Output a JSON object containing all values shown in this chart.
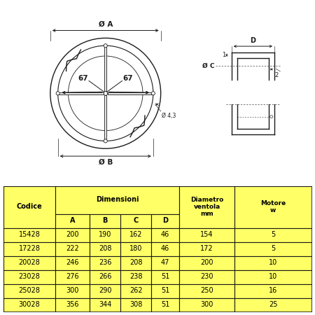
{
  "bg_color": "#ffffff",
  "line_color": "#1a1a1a",
  "yellow_color": "#ffff66",
  "table_data": {
    "codice": [
      "15428",
      "17228",
      "20028",
      "23028",
      "25028",
      "30028"
    ],
    "A": [
      200,
      222,
      246,
      276,
      300,
      356
    ],
    "B": [
      190,
      208,
      236,
      266,
      290,
      344
    ],
    "C": [
      162,
      180,
      208,
      238,
      262,
      308
    ],
    "D": [
      46,
      46,
      47,
      51,
      51,
      51
    ],
    "diam_ventola": [
      154,
      172,
      200,
      230,
      250,
      300
    ],
    "motore": [
      5,
      5,
      10,
      10,
      16,
      25
    ]
  },
  "label_67": "67",
  "label_diam43": "Ø 4,3",
  "dim_label_A": "Ø A",
  "dim_label_B": "Ø B",
  "dim_label_C": "Ø C",
  "dim_label_D": "D",
  "dim_label_1": "1",
  "dim_label_2": "2"
}
